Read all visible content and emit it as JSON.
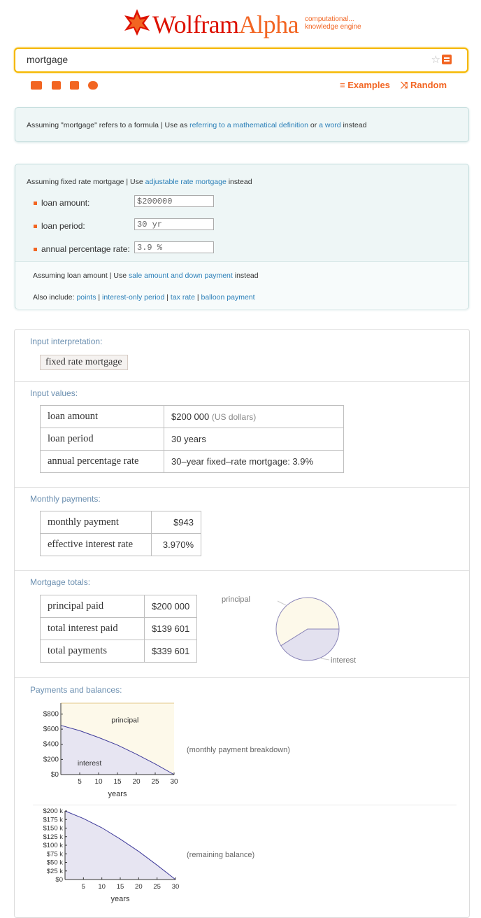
{
  "header": {
    "logo_wolfram": "Wolfram",
    "logo_alpha": "Alpha",
    "tagline_1": "computational...",
    "tagline_2": "knowledge engine",
    "search_value": "mortgage",
    "examples_label": "Examples",
    "random_label": "Random"
  },
  "assume1": {
    "prefix": "Assuming \"mortgage\" refers to a formula | Use as ",
    "link1": "referring to a mathematical definition",
    "mid": " or ",
    "link2": "a word",
    "suffix": " instead"
  },
  "assume2": {
    "prefix": "Assuming fixed rate mortgage | Use ",
    "link": "adjustable rate mortgage",
    "suffix": " instead",
    "fields": [
      {
        "label": "loan amount:",
        "value": "$200000"
      },
      {
        "label": "loan period:",
        "value": "30 yr"
      },
      {
        "label": "annual percentage rate:",
        "value": "3.9 %"
      }
    ],
    "loan_prefix": "Assuming loan amount  | Use ",
    "loan_link": "sale amount and down payment",
    "loan_suffix": " instead",
    "also_prefix": "Also include:  ",
    "also_links": [
      "points",
      "interest-only period",
      "tax rate",
      "balloon payment"
    ]
  },
  "pods": {
    "interp_title": "Input interpretation:",
    "interp_value": "fixed rate mortgage",
    "values_title": "Input values:",
    "values_rows": [
      {
        "k": "loan amount",
        "v": "$200 000",
        "u": "(US dollars)"
      },
      {
        "k": "loan period",
        "v": "30 years",
        "u": ""
      },
      {
        "k": "annual percentage rate",
        "v": "30–year fixed–rate mortgage: 3.9%",
        "u": ""
      }
    ],
    "monthly_title": "Monthly payments:",
    "monthly_rows": [
      {
        "k": "monthly payment",
        "v": "$943"
      },
      {
        "k": "effective interest rate",
        "v": "3.970%"
      }
    ],
    "totals_title": "Mortgage totals:",
    "totals_rows": [
      {
        "k": "principal paid",
        "v": "$200 000"
      },
      {
        "k": "total interest paid",
        "v": "$139 601"
      },
      {
        "k": "total payments",
        "v": "$339 601"
      }
    ],
    "payments_title": "Payments and balances:",
    "chart1_caption": "(monthly payment breakdown)",
    "chart2_caption": "(remaining balance)"
  },
  "chart_data": [
    {
      "type": "pie",
      "labels": [
        "principal",
        "interest"
      ],
      "values": [
        200000,
        139601
      ],
      "colors": [
        "#fdf9ea",
        "#e3e1ef"
      ]
    },
    {
      "type": "area",
      "xlabel": "years",
      "x": [
        0,
        5,
        10,
        15,
        20,
        25,
        30
      ],
      "series": [
        {
          "name": "interest",
          "values": [
            650,
            580,
            490,
            390,
            270,
            140,
            0
          ]
        },
        {
          "name": "principal",
          "values": [
            943,
            943,
            943,
            943,
            943,
            943,
            943
          ]
        }
      ],
      "xticks": [
        "5",
        "10",
        "15",
        "20",
        "25",
        "30"
      ],
      "yticks": [
        "$0",
        "$200",
        "$400",
        "$600",
        "$800"
      ],
      "xlim": [
        0,
        30
      ],
      "ylim": [
        0,
        943
      ]
    },
    {
      "type": "area",
      "xlabel": "years",
      "x": [
        0,
        5,
        10,
        15,
        20,
        25,
        30
      ],
      "series": [
        {
          "name": "balance",
          "values": [
            200000,
            178000,
            151000,
            118000,
            82000,
            42000,
            0
          ]
        }
      ],
      "xticks": [
        "5",
        "10",
        "15",
        "20",
        "25",
        "30"
      ],
      "yticks": [
        "$0",
        "$25 k",
        "$50 k",
        "$75 k",
        "$100 k",
        "$125 k",
        "$150 k",
        "$175 k",
        "$200 k"
      ],
      "xlim": [
        0,
        30
      ],
      "ylim": [
        0,
        200000
      ]
    }
  ]
}
